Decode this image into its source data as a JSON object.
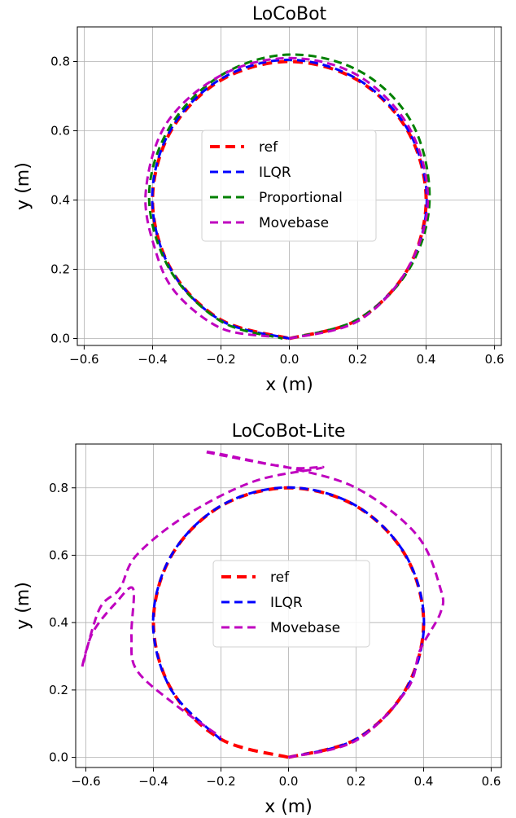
{
  "chart_data": [
    {
      "type": "line",
      "title": "LoCoBot",
      "xlabel": "x (m)",
      "ylabel": "y (m)",
      "xlim": [
        -0.62,
        0.62
      ],
      "ylim": [
        -0.02,
        0.9
      ],
      "xticks": [
        -0.6,
        -0.4,
        -0.2,
        0.0,
        0.2,
        0.4,
        0.6
      ],
      "yticks": [
        0.0,
        0.2,
        0.4,
        0.6,
        0.8
      ],
      "xtick_labels": [
        "−0.6",
        "−0.4",
        "−0.2",
        "0.0",
        "0.2",
        "0.4",
        "0.6"
      ],
      "ytick_labels": [
        "0.0",
        "0.2",
        "0.4",
        "0.6",
        "0.8"
      ],
      "grid": true,
      "legend": "center",
      "series": [
        {
          "name": "ref",
          "color": "#ff0000",
          "x": [
            0.0,
            0.2,
            0.346,
            0.4,
            0.346,
            0.2,
            0.0,
            -0.2,
            -0.346,
            -0.4,
            -0.346,
            -0.2,
            0.0
          ],
          "y": [
            0.0,
            0.054,
            0.2,
            0.4,
            0.6,
            0.746,
            0.8,
            0.746,
            0.6,
            0.4,
            0.2,
            0.054,
            0.0
          ]
        },
        {
          "name": "ILQR",
          "color": "#0000ff",
          "x": [
            0.0,
            0.2,
            0.347,
            0.402,
            0.348,
            0.201,
            0.0,
            -0.2,
            -0.347,
            -0.401,
            -0.347,
            -0.2,
            0.0
          ],
          "y": [
            0.0,
            0.055,
            0.2,
            0.4,
            0.601,
            0.748,
            0.805,
            0.75,
            0.603,
            0.405,
            0.2,
            0.052,
            0.0
          ]
        },
        {
          "name": "Proportional",
          "color": "#008000",
          "x": [
            0.0,
            0.2,
            0.35,
            0.41,
            0.36,
            0.21,
            0.0,
            -0.2,
            -0.35,
            -0.41,
            -0.35,
            -0.2,
            -0.02
          ],
          "y": [
            0.0,
            0.055,
            0.2,
            0.4,
            0.62,
            0.77,
            0.82,
            0.76,
            0.61,
            0.41,
            0.2,
            0.05,
            0.0
          ]
        },
        {
          "name": "Movebase",
          "color": "#bf00bf",
          "x": [
            0.0,
            0.2,
            0.345,
            0.405,
            0.35,
            0.2,
            0.0,
            -0.2,
            -0.36,
            -0.42,
            -0.39,
            -0.33,
            -0.2,
            -0.05
          ],
          "y": [
            0.0,
            0.05,
            0.2,
            0.4,
            0.61,
            0.76,
            0.81,
            0.76,
            0.62,
            0.42,
            0.25,
            0.13,
            0.03,
            0.005
          ]
        }
      ]
    },
    {
      "type": "line",
      "title": "LoCoBot-Lite",
      "xlabel": "x (m)",
      "ylabel": "y (m)",
      "xlim": [
        -0.63,
        0.63
      ],
      "ylim": [
        -0.03,
        0.93
      ],
      "xticks": [
        -0.6,
        -0.4,
        -0.2,
        0.0,
        0.2,
        0.4,
        0.6
      ],
      "yticks": [
        0.0,
        0.2,
        0.4,
        0.6,
        0.8
      ],
      "xtick_labels": [
        "−0.6",
        "−0.4",
        "−0.2",
        "0.0",
        "0.2",
        "0.4",
        "0.6"
      ],
      "ytick_labels": [
        "0.0",
        "0.2",
        "0.4",
        "0.6",
        "0.8"
      ],
      "grid": true,
      "legend": "center",
      "series": [
        {
          "name": "ref",
          "color": "#ff0000",
          "x": [
            0.0,
            0.2,
            0.346,
            0.4,
            0.346,
            0.2,
            0.0,
            -0.2,
            -0.346,
            -0.4,
            -0.346,
            -0.2,
            0.0
          ],
          "y": [
            0.0,
            0.054,
            0.2,
            0.4,
            0.6,
            0.746,
            0.8,
            0.746,
            0.6,
            0.4,
            0.2,
            0.054,
            0.0
          ]
        },
        {
          "name": "ILQR",
          "color": "#0000ff",
          "x": [
            0.0,
            0.2,
            0.347,
            0.401,
            0.347,
            0.2,
            0.0,
            -0.2,
            -0.347,
            -0.401,
            -0.347,
            -0.2
          ],
          "y": [
            0.0,
            0.054,
            0.2,
            0.4,
            0.6,
            0.747,
            0.801,
            0.747,
            0.6,
            0.4,
            0.2,
            0.052
          ]
        },
        {
          "name": "Movebase",
          "color": "#bf00bf",
          "x": [
            0.0,
            0.2,
            0.35,
            0.39,
            0.45,
            0.45,
            0.38,
            0.2,
            0.0,
            -0.06,
            -0.24,
            -0.2,
            0.0,
            0.1,
            -0.1,
            -0.3,
            -0.45,
            -0.5,
            -0.56,
            -0.61,
            -0.58,
            -0.51,
            -0.46,
            -0.465,
            -0.45,
            -0.34,
            -0.2
          ],
          "y": [
            0.0,
            0.05,
            0.2,
            0.32,
            0.43,
            0.5,
            0.66,
            0.8,
            0.86,
            0.87,
            0.905,
            0.9,
            0.86,
            0.86,
            0.82,
            0.72,
            0.6,
            0.5,
            0.44,
            0.27,
            0.37,
            0.46,
            0.5,
            0.36,
            0.26,
            0.16,
            0.06
          ]
        }
      ]
    }
  ]
}
